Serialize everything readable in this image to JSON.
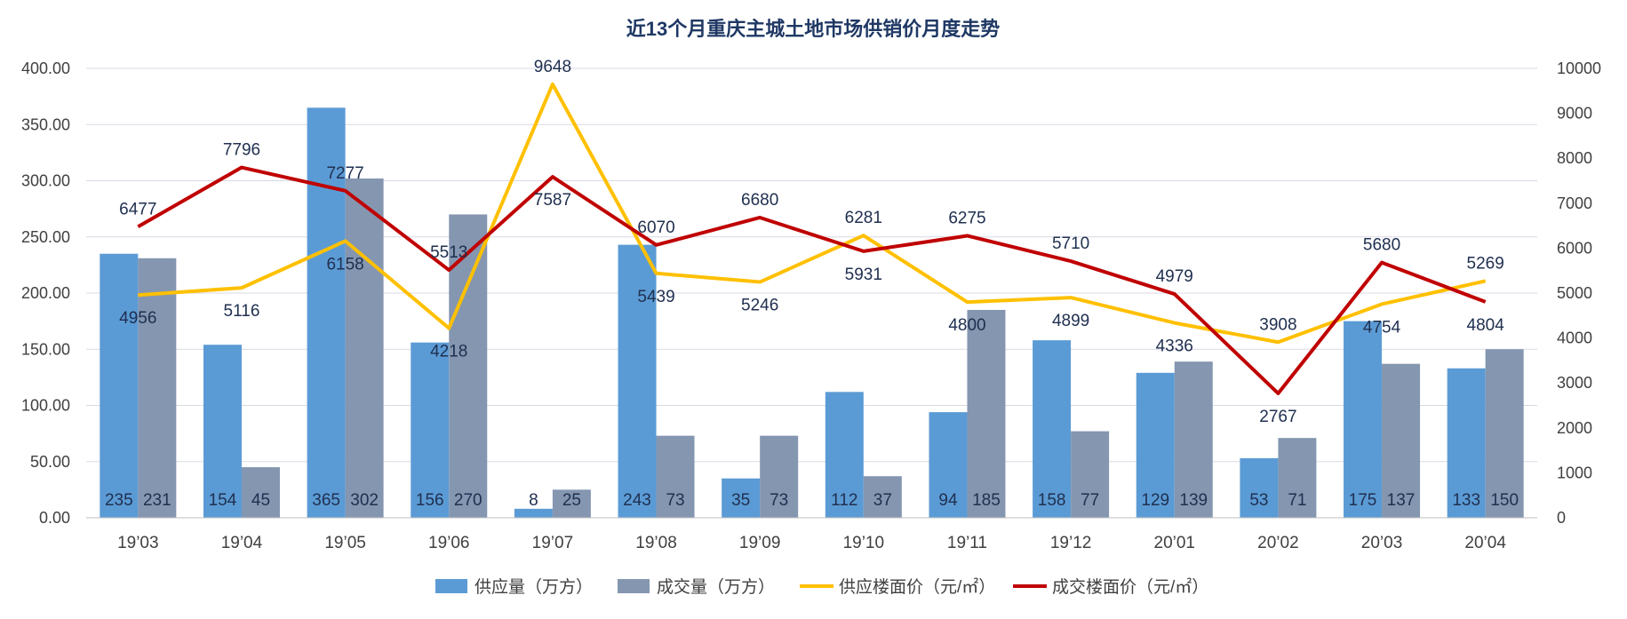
{
  "chart_data": {
    "type": "bar",
    "title": "近13个月重庆主城土地市场供销价月度走势",
    "categories": [
      "19’03",
      "19’04",
      "19’05",
      "19’06",
      "19’07",
      "19’08",
      "19’09",
      "19’10",
      "19’11",
      "19’12",
      "20’01",
      "20’02",
      "20’03",
      "20’04"
    ],
    "left_axis": {
      "ylim": [
        0,
        400
      ],
      "ticks": [
        "0.00",
        "50.00",
        "100.00",
        "150.00",
        "200.00",
        "250.00",
        "300.00",
        "350.00",
        "400.00"
      ]
    },
    "right_axis": {
      "ylim": [
        0,
        10000
      ],
      "ticks": [
        "0",
        "1000",
        "2000",
        "3000",
        "4000",
        "5000",
        "6000",
        "7000",
        "8000",
        "9000",
        "10000"
      ]
    },
    "grid": true,
    "legend_position": "bottom",
    "series": [
      {
        "name": "供应量（万方）",
        "type": "bar",
        "axis": "left",
        "color": "#5b9bd5",
        "values": [
          235,
          154,
          365,
          156,
          8,
          243,
          35,
          112,
          94,
          158,
          129,
          53,
          175,
          133
        ]
      },
      {
        "name": "成交量（万方）",
        "type": "bar",
        "axis": "left",
        "color": "#8496b0",
        "values": [
          231,
          45,
          302,
          270,
          25,
          73,
          73,
          37,
          185,
          77,
          139,
          71,
          137,
          150
        ]
      },
      {
        "name": "供应楼面价（元/㎡）",
        "type": "line",
        "axis": "right",
        "color": "#ffc000",
        "values": [
          4956,
          5116,
          6158,
          4218,
          9648,
          5439,
          5246,
          6281,
          4800,
          4899,
          4336,
          3908,
          4754,
          5269
        ]
      },
      {
        "name": "成交楼面价（元/㎡）",
        "type": "line",
        "axis": "right",
        "color": "#c00000",
        "values": [
          6477,
          7796,
          7277,
          5513,
          7587,
          6070,
          6680,
          5931,
          6275,
          5710,
          4979,
          2767,
          5680,
          4804
        ]
      }
    ]
  }
}
